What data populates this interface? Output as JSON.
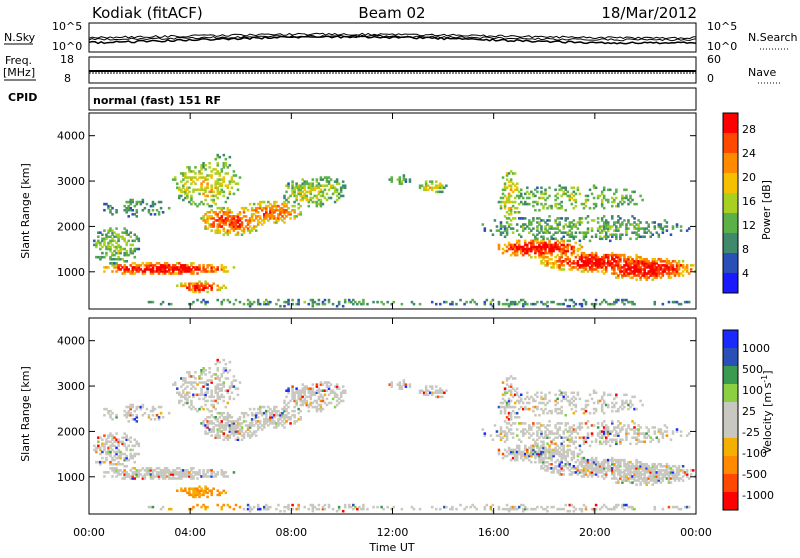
{
  "header": {
    "station": "Kodiak (fitACF)",
    "beam": "Beam 02",
    "date": "18/Mar/2012"
  },
  "sky_panel": {
    "left_label": "N.Sky",
    "right_label": "N.Search",
    "left_ticks": [
      "10^5",
      "10^0"
    ],
    "right_ticks": [
      "10^5",
      "10^0"
    ]
  },
  "freq_panel": {
    "left_label_1": "Freq.",
    "left_label_2": "[MHz]",
    "right_label": "Nave",
    "left_ticks": [
      "18",
      "8"
    ],
    "right_ticks": [
      "60",
      "0"
    ]
  },
  "cpid": {
    "label": "CPID",
    "value": "normal (fast) 151 RF"
  },
  "colors": {
    "power_scale": [
      "#1a1aff",
      "#2a50b8",
      "#3f8a6a",
      "#5bb048",
      "#a8d020",
      "#f4c000",
      "#ff8a00",
      "#ff4800",
      "#ff0000"
    ],
    "velocity_scale": [
      "#ff0000",
      "#ff4800",
      "#ff8a00",
      "#f4b000",
      "#c8c8c0",
      "#c8c8c0",
      "#8ad040",
      "#3a9a50",
      "#2a50b8",
      "#1a2aff"
    ]
  },
  "chart_data": [
    {
      "type": "heatmap",
      "name": "power",
      "ylabel": "Slant Range [km]",
      "ylim": [
        180,
        4500
      ],
      "yticks": [
        1000,
        2000,
        3000,
        4000
      ],
      "xlim": [
        0,
        24
      ],
      "colorbar": {
        "label": "Power [dB]",
        "ticks": [
          "4",
          "8",
          "12",
          "16",
          "20",
          "24",
          "28"
        ],
        "range": [
          0,
          30
        ]
      }
    },
    {
      "type": "heatmap",
      "name": "velocity",
      "ylabel": "Slant Range [km]",
      "ylim": [
        180,
        4500
      ],
      "yticks": [
        1000,
        2000,
        3000,
        4000
      ],
      "xlim": [
        0,
        24
      ],
      "colorbar": {
        "label": "Velocity [m s^-1]",
        "ticks": [
          "1000",
          "500",
          "100",
          "25",
          "-25",
          "-100",
          "-500",
          "-1000"
        ]
      }
    }
  ],
  "xaxis": {
    "label": "Time UT",
    "ticks": [
      "00:00",
      "04:00",
      "08:00",
      "12:00",
      "16:00",
      "20:00",
      "00:00"
    ]
  }
}
